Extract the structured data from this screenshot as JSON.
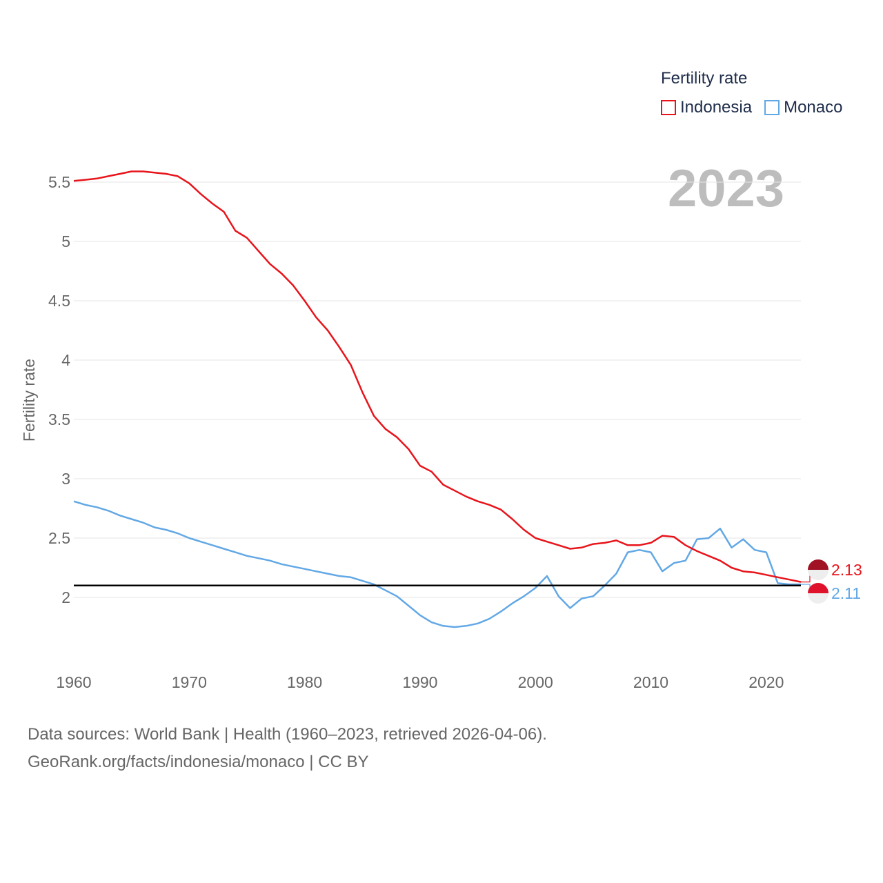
{
  "legend": {
    "title": "Fertility rate",
    "items": [
      {
        "label": "Indonesia",
        "color": "#e8141b"
      },
      {
        "label": "Monaco",
        "color": "#62a8e5"
      }
    ]
  },
  "year_label": "2023",
  "footer": {
    "line1": "Data sources: World Bank | Health (1960–2023, retrieved 2026-04-06).",
    "line2": "GeoRank.org/facts/indonesia/monaco | CC BY"
  },
  "end_labels": {
    "indonesia": "2.13",
    "monaco": "2.11"
  },
  "chart_data": {
    "type": "line",
    "title": "",
    "xlabel": "",
    "ylabel": "Fertility rate",
    "xlim": [
      1960,
      2023
    ],
    "ylim": [
      1.5,
      5.7
    ],
    "x_ticks": [
      1960,
      1970,
      1980,
      1990,
      2000,
      2010,
      2020
    ],
    "y_ticks": [
      2,
      2.5,
      3,
      3.5,
      4,
      4.5,
      5,
      5.5
    ],
    "y_tick_labels": [
      "2",
      "2.5",
      "3",
      "3.5",
      "4",
      "4.5",
      "5",
      "5.5"
    ],
    "reference_line": 2.1,
    "x": [
      1960,
      1961,
      1962,
      1963,
      1964,
      1965,
      1966,
      1967,
      1968,
      1969,
      1970,
      1971,
      1972,
      1973,
      1974,
      1975,
      1976,
      1977,
      1978,
      1979,
      1980,
      1981,
      1982,
      1983,
      1984,
      1985,
      1986,
      1987,
      1988,
      1989,
      1990,
      1991,
      1992,
      1993,
      1994,
      1995,
      1996,
      1997,
      1998,
      1999,
      2000,
      2001,
      2002,
      2003,
      2004,
      2005,
      2006,
      2007,
      2008,
      2009,
      2010,
      2011,
      2012,
      2013,
      2014,
      2015,
      2016,
      2017,
      2018,
      2019,
      2020,
      2021,
      2022,
      2023
    ],
    "series": [
      {
        "name": "Indonesia",
        "color": "#e8141b",
        "values": [
          5.51,
          5.52,
          5.53,
          5.55,
          5.57,
          5.59,
          5.59,
          5.58,
          5.57,
          5.55,
          5.49,
          5.4,
          5.32,
          5.25,
          5.09,
          5.03,
          4.92,
          4.81,
          4.73,
          4.63,
          4.5,
          4.36,
          4.25,
          4.11,
          3.96,
          3.73,
          3.53,
          3.42,
          3.35,
          3.25,
          3.11,
          3.06,
          2.95,
          2.9,
          2.85,
          2.81,
          2.78,
          2.74,
          2.66,
          2.57,
          2.5,
          2.47,
          2.44,
          2.41,
          2.42,
          2.45,
          2.46,
          2.48,
          2.44,
          2.44,
          2.46,
          2.52,
          2.51,
          2.44,
          2.39,
          2.35,
          2.31,
          2.25,
          2.22,
          2.21,
          2.19,
          2.17,
          2.15,
          2.13
        ]
      },
      {
        "name": "Monaco",
        "color": "#62a8e5",
        "values": [
          2.81,
          2.78,
          2.76,
          2.73,
          2.69,
          2.66,
          2.63,
          2.59,
          2.57,
          2.54,
          2.5,
          2.47,
          2.44,
          2.41,
          2.38,
          2.35,
          2.33,
          2.31,
          2.28,
          2.26,
          2.24,
          2.22,
          2.2,
          2.18,
          2.17,
          2.14,
          2.11,
          2.06,
          2.01,
          1.93,
          1.85,
          1.79,
          1.76,
          1.75,
          1.76,
          1.78,
          1.82,
          1.88,
          1.95,
          2.01,
          2.08,
          2.18,
          2.01,
          1.91,
          1.99,
          2.01,
          2.1,
          2.2,
          2.38,
          2.4,
          2.38,
          2.22,
          2.29,
          2.31,
          2.49,
          2.5,
          2.58,
          2.42,
          2.49,
          2.4,
          2.38,
          2.12,
          2.11,
          2.11
        ]
      }
    ]
  }
}
